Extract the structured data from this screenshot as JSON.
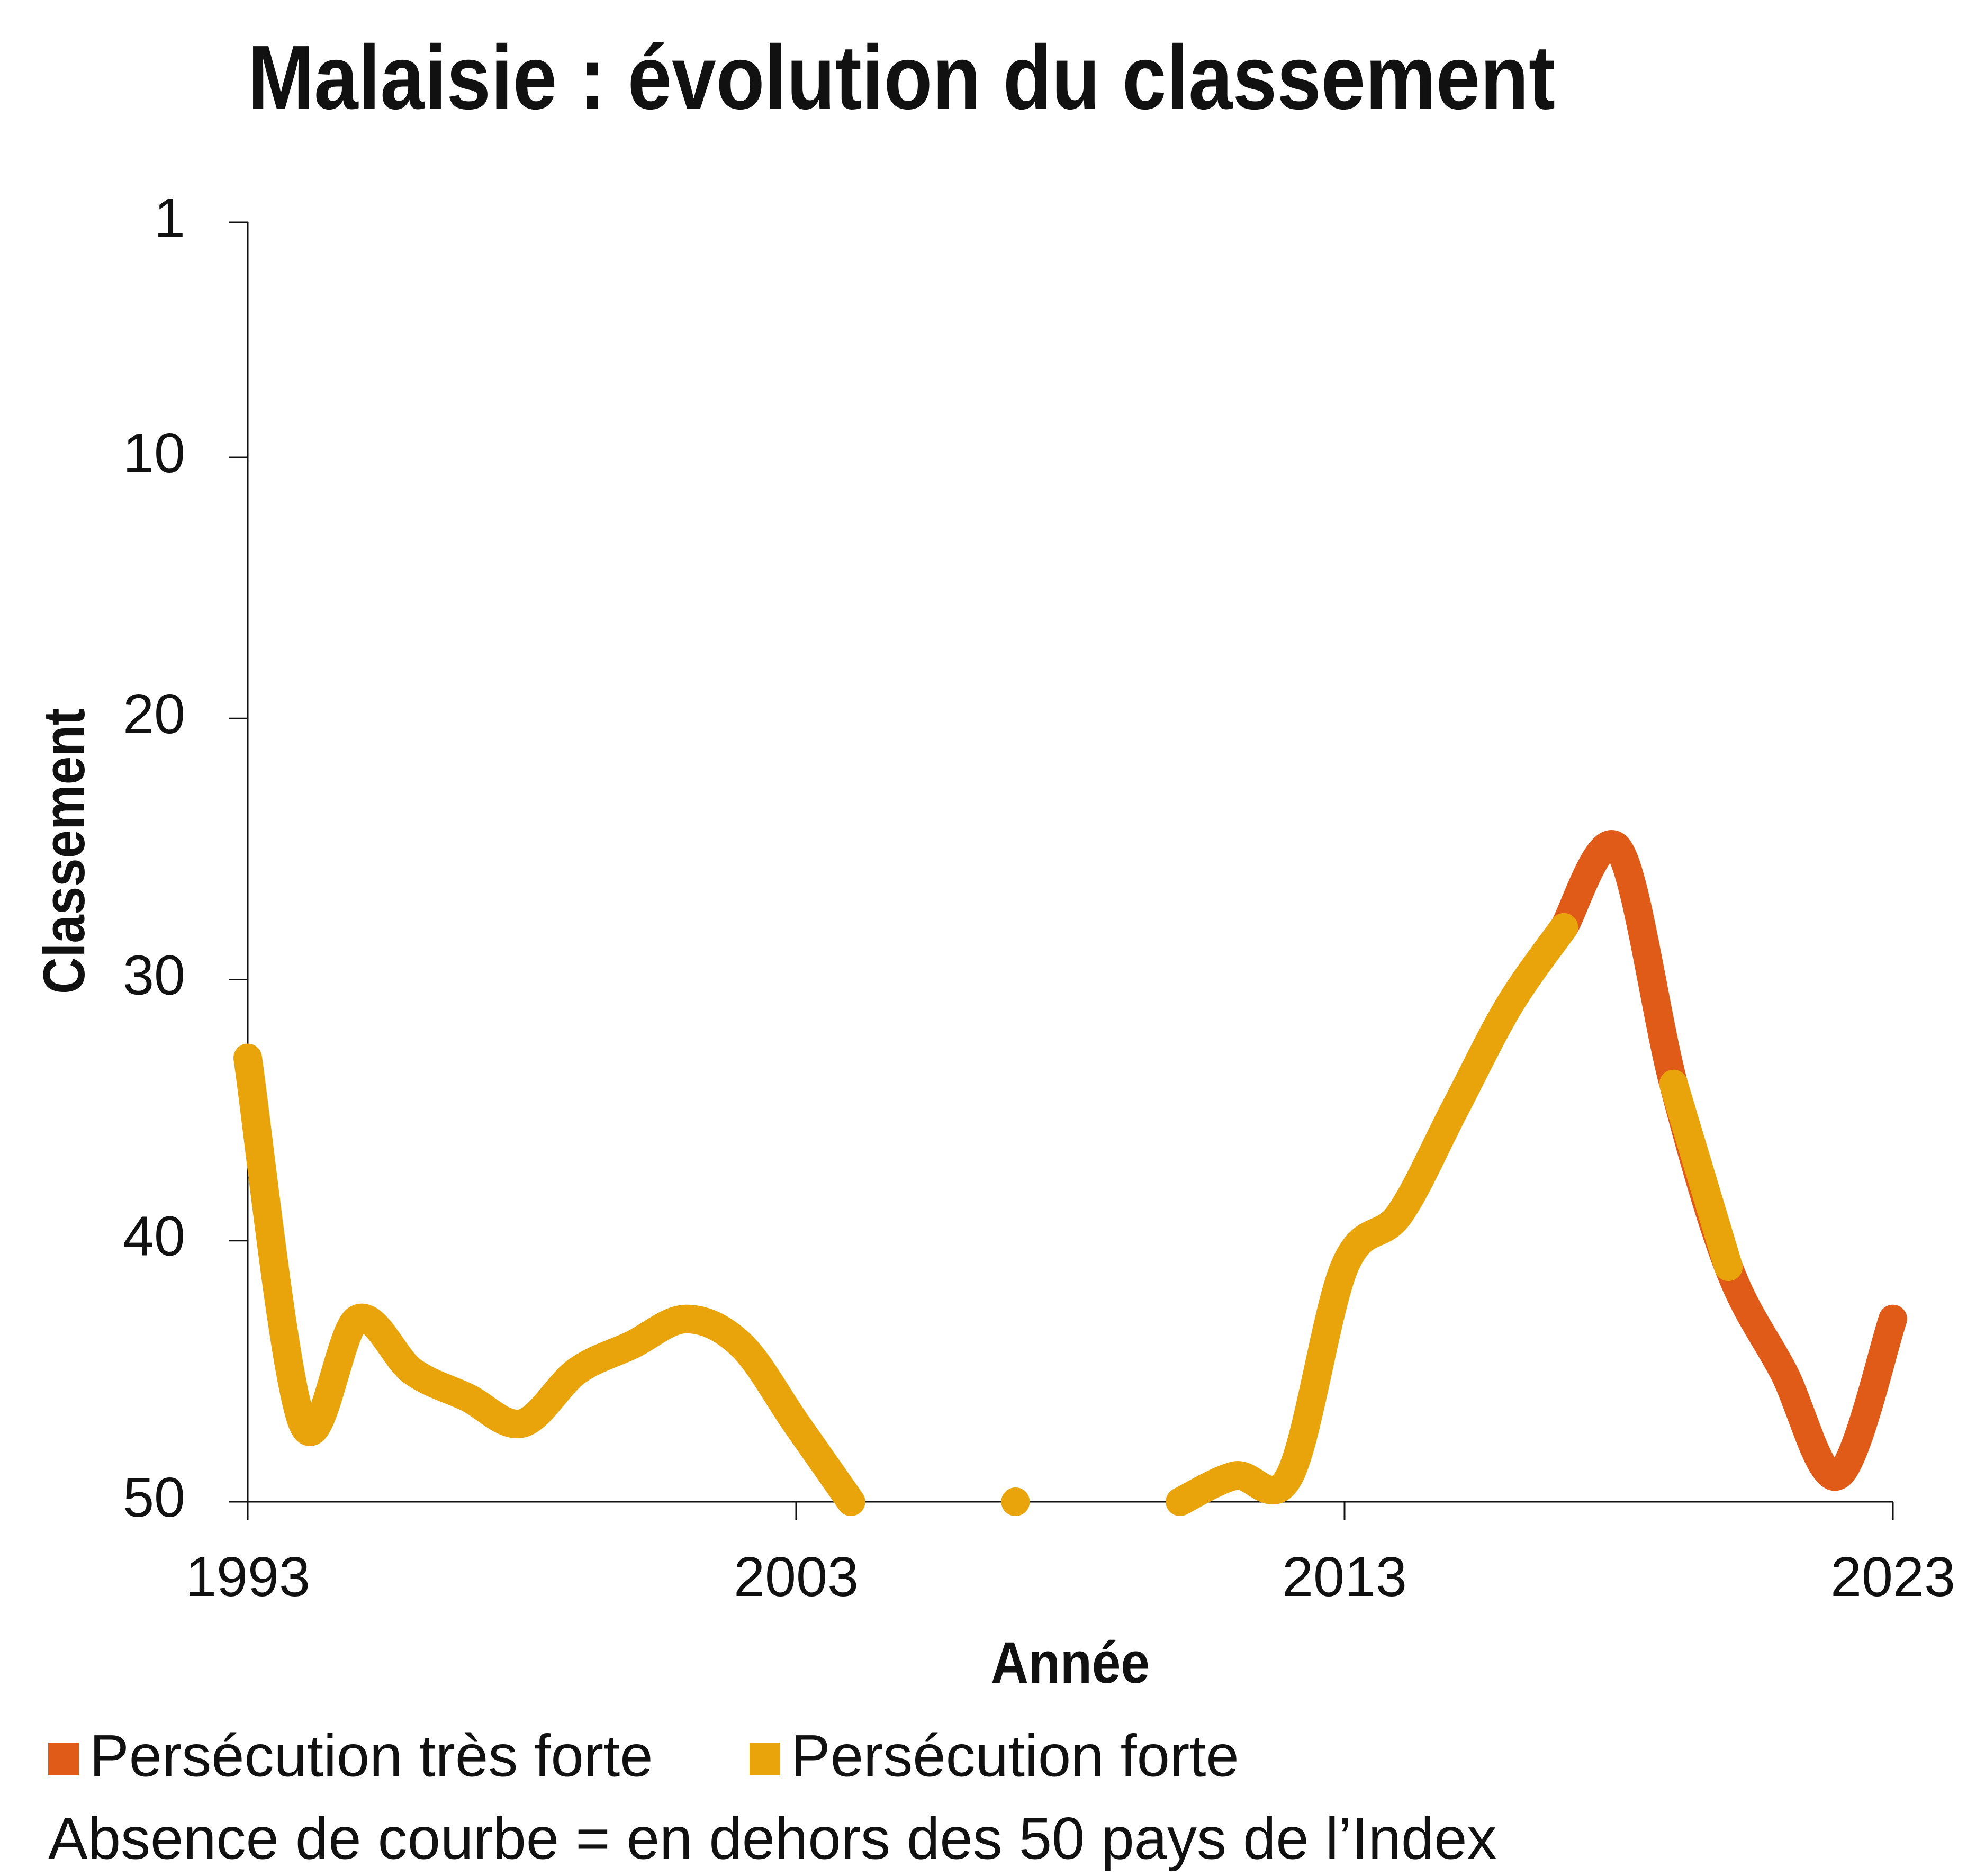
{
  "chart_data": {
    "type": "line",
    "title": "Malaisie : évolution du classement",
    "x_label": "Année",
    "y_label": "Classement",
    "x": [
      1993,
      1994,
      1995,
      1996,
      1997,
      1998,
      1999,
      2000,
      2001,
      2002,
      2003,
      2004,
      2005,
      2006,
      2007,
      2008,
      2009,
      2010,
      2011,
      2012,
      2013,
      2014,
      2015,
      2016,
      2017,
      2018,
      2019,
      2020,
      2021,
      2022,
      2023
    ],
    "series": [
      {
        "name": "Persécution très forte",
        "color": "#e05a18",
        "values": [
          null,
          null,
          null,
          null,
          null,
          null,
          null,
          null,
          null,
          null,
          null,
          null,
          null,
          null,
          null,
          null,
          null,
          null,
          null,
          null,
          null,
          null,
          null,
          null,
          28,
          25,
          34,
          41,
          45,
          49,
          43
        ]
      },
      {
        "name": "Persécution forte",
        "color": "#e9a40c",
        "values": [
          33,
          47,
          43,
          45,
          46,
          47,
          45,
          44,
          43,
          44,
          47,
          50,
          null,
          null,
          50,
          null,
          null,
          50,
          49,
          49,
          41,
          39,
          35,
          31,
          28,
          null,
          34,
          41,
          null,
          null,
          null
        ]
      }
    ],
    "xlim": [
      1993,
      2023
    ],
    "xticks": [
      1993,
      2003,
      2013,
      2023
    ],
    "ylim": [
      50,
      1
    ],
    "yticks": [
      1,
      10,
      20,
      30,
      40,
      50
    ],
    "note": "Absence de courbe = en dehors des 50 pays de l’Index"
  }
}
